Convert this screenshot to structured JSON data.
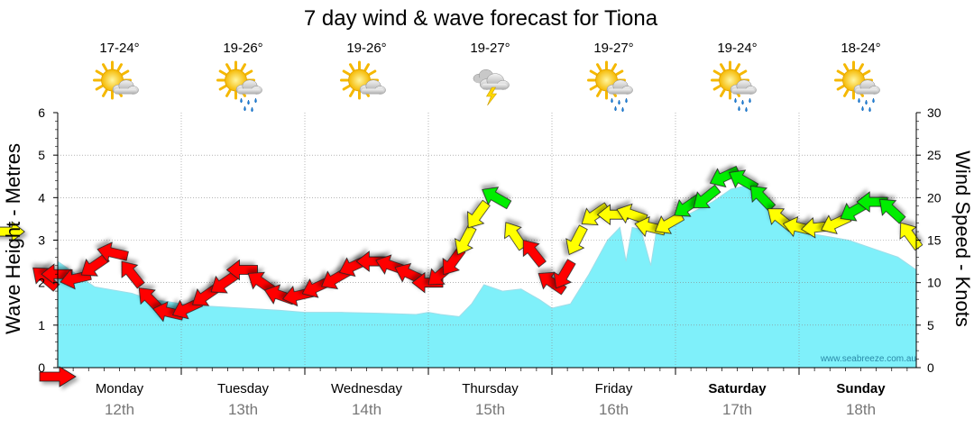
{
  "chart_data": {
    "type": "area",
    "title": "7 day wind & wave forecast for Tiona",
    "ylabel_left": "Wave Height - Metres",
    "ylabel_right": "Wind Speed - Knots",
    "ylim_left": [
      0,
      6
    ],
    "ylim_right": [
      0,
      30
    ],
    "yticks_left": [
      "0",
      "1",
      "2",
      "3",
      "4",
      "5",
      "6"
    ],
    "yticks_right": [
      "0",
      "5",
      "10",
      "15",
      "20",
      "25",
      "30"
    ],
    "grid": true,
    "days": [
      {
        "day": "Monday",
        "date": "12th",
        "temp": "17-24°",
        "weather": "partly-cloudy",
        "bold": false
      },
      {
        "day": "Tuesday",
        "date": "13th",
        "temp": "19-26°",
        "weather": "sun-showers",
        "bold": false
      },
      {
        "day": "Wednesday",
        "date": "14th",
        "temp": "19-26°",
        "weather": "partly-cloudy",
        "bold": false
      },
      {
        "day": "Thursday",
        "date": "15th",
        "temp": "19-27°",
        "weather": "thunderstorm",
        "bold": false
      },
      {
        "day": "Friday",
        "date": "16th",
        "temp": "19-27°",
        "weather": "sun-showers",
        "bold": false
      },
      {
        "day": "Saturday",
        "date": "17th",
        "temp": "19-24°",
        "weather": "sun-showers",
        "bold": true
      },
      {
        "day": "Sunday",
        "date": "18th",
        "temp": "18-24°",
        "weather": "sun-showers",
        "bold": true
      }
    ],
    "wave_height": {
      "x_days": [
        0,
        0.05,
        0.15,
        0.3,
        0.5,
        0.6,
        0.75,
        0.9,
        1.0,
        1.2,
        1.5,
        1.8,
        2.0,
        2.3,
        2.6,
        2.9,
        3.0,
        3.1,
        3.25,
        3.35,
        3.45,
        3.6,
        3.75,
        3.9,
        4.0,
        4.15,
        4.3,
        4.45,
        4.55,
        4.6,
        4.65,
        4.72,
        4.8,
        4.85,
        4.95,
        5.1,
        5.3,
        5.45,
        5.6,
        5.75,
        5.85,
        6.0,
        6.2,
        6.4,
        6.6,
        6.8,
        7.0
      ],
      "values": [
        2.5,
        2.4,
        2.2,
        1.9,
        1.8,
        1.75,
        1.6,
        1.55,
        1.5,
        1.45,
        1.4,
        1.35,
        1.3,
        1.3,
        1.28,
        1.25,
        1.3,
        1.25,
        1.2,
        1.5,
        1.95,
        1.8,
        1.85,
        1.6,
        1.4,
        1.5,
        2.2,
        3.0,
        3.3,
        2.5,
        3.3,
        3.25,
        2.4,
        3.3,
        3.4,
        3.6,
        3.9,
        4.2,
        4.3,
        3.9,
        3.4,
        3.2,
        3.1,
        3.0,
        2.8,
        2.6,
        2.3
      ]
    },
    "wind": {
      "x_days": [
        -0.4,
        -0.1,
        0.0,
        0.15,
        0.3,
        0.45,
        0.6,
        0.75,
        0.9,
        1.05,
        1.2,
        1.35,
        1.5,
        1.65,
        1.8,
        1.95,
        2.1,
        2.25,
        2.4,
        2.55,
        2.7,
        2.85,
        3.0,
        3.1,
        3.2,
        3.3,
        3.4,
        3.55,
        3.7,
        3.85,
        4.0,
        4.1,
        4.2,
        4.35,
        4.5,
        4.65,
        4.8,
        4.95,
        5.1,
        5.25,
        5.4,
        5.55,
        5.7,
        5.85,
        6.0,
        6.15,
        6.3,
        6.45,
        6.6,
        6.75,
        6.9
      ],
      "speed_knots": [
        16,
        10.5,
        11,
        10.5,
        12,
        13.5,
        11,
        8,
        6.5,
        7,
        8.5,
        10,
        11.5,
        10,
        8.5,
        8.5,
        9.5,
        10.5,
        12,
        12.5,
        12,
        11,
        10,
        11,
        12.5,
        15,
        18,
        20,
        15.5,
        13.5,
        10,
        11,
        15,
        18,
        18,
        18,
        16.5,
        17,
        19,
        20,
        22.5,
        22,
        20,
        17.5,
        16.5,
        16.5,
        17,
        18.5,
        19.5,
        18.5,
        15.5
      ],
      "bands": [
        {
          "max": 14,
          "color": "#ff0000"
        },
        {
          "max": 18,
          "color": "#ffff00"
        },
        {
          "max": 40,
          "color": "#00ee00"
        }
      ]
    },
    "colors": {
      "wave_fill": "#7ff0fa",
      "grid": "#888888"
    },
    "watermark": "www.seabreeze.com.au"
  }
}
